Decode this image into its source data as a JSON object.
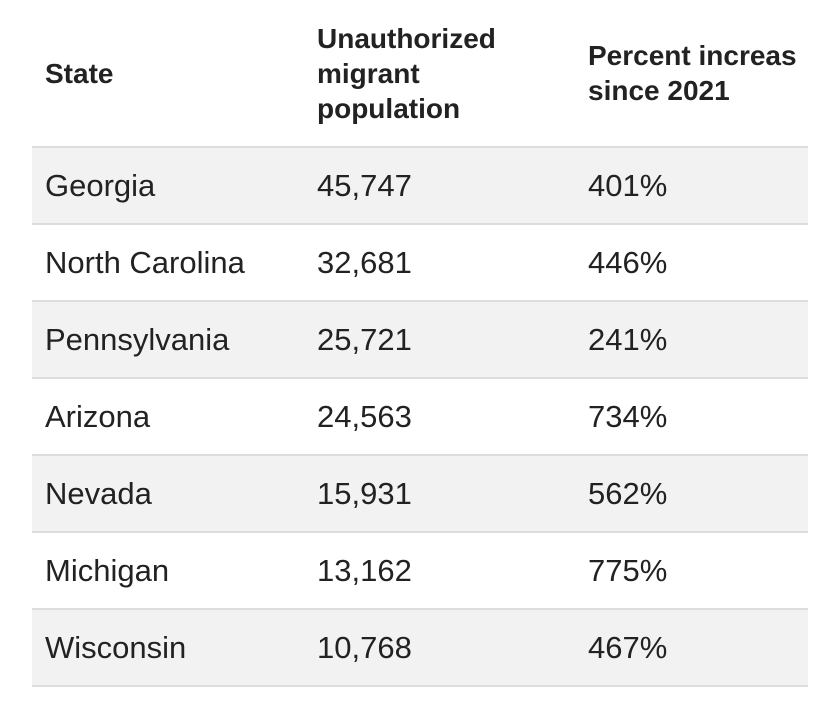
{
  "table": {
    "headers": {
      "state": "State",
      "population": "Unauthorized migrant population",
      "percent": "Percent increas since 2021"
    },
    "rows": [
      {
        "state": "Georgia",
        "population": "45,747",
        "percent": "401%"
      },
      {
        "state": "North Carolina",
        "population": "32,681",
        "percent": "446%"
      },
      {
        "state": "Pennsylvania",
        "population": "25,721",
        "percent": "241%"
      },
      {
        "state": "Arizona",
        "population": "24,563",
        "percent": "734%"
      },
      {
        "state": "Nevada",
        "population": "15,931",
        "percent": "562%"
      },
      {
        "state": "Michigan",
        "population": "13,162",
        "percent": "775%"
      },
      {
        "state": "Wisconsin",
        "population": "10,768",
        "percent": "467%"
      }
    ]
  }
}
